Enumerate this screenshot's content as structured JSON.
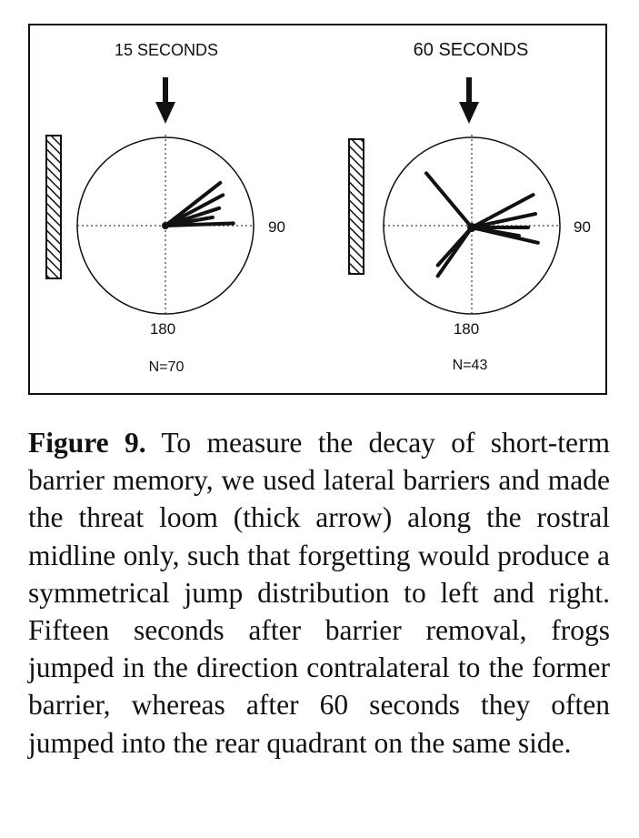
{
  "figure": {
    "panels": [
      {
        "time_label": "15 SECONDS",
        "right_label": "90",
        "bottom_label": "180",
        "n_label": "N=70",
        "jump_angles_deg": [
          52,
          62,
          72,
          80,
          88
        ]
      },
      {
        "time_label": "60 SECONDS",
        "right_label": "90",
        "bottom_label": "180",
        "n_label": "N=43",
        "jump_angles_deg": [
          62,
          78,
          90,
          100,
          103,
          215,
          222,
          320
        ]
      }
    ]
  },
  "caption": {
    "figure_number": "Figure 9.",
    "text": "To measure the decay of short-term barrier memory, we used lateral barriers and made the threat loom (thick arrow) along the rostral midline only, such that forgetting would produce a symmetrical jump distribution to left and right. Fifteen seconds after barrier removal, frogs jumped in the direction contralateral to the former barrier, whereas after 60 seconds they often jumped into the rear quadrant on the same side."
  },
  "colors": {
    "ink": "#111111",
    "paper": "#ffffff"
  }
}
